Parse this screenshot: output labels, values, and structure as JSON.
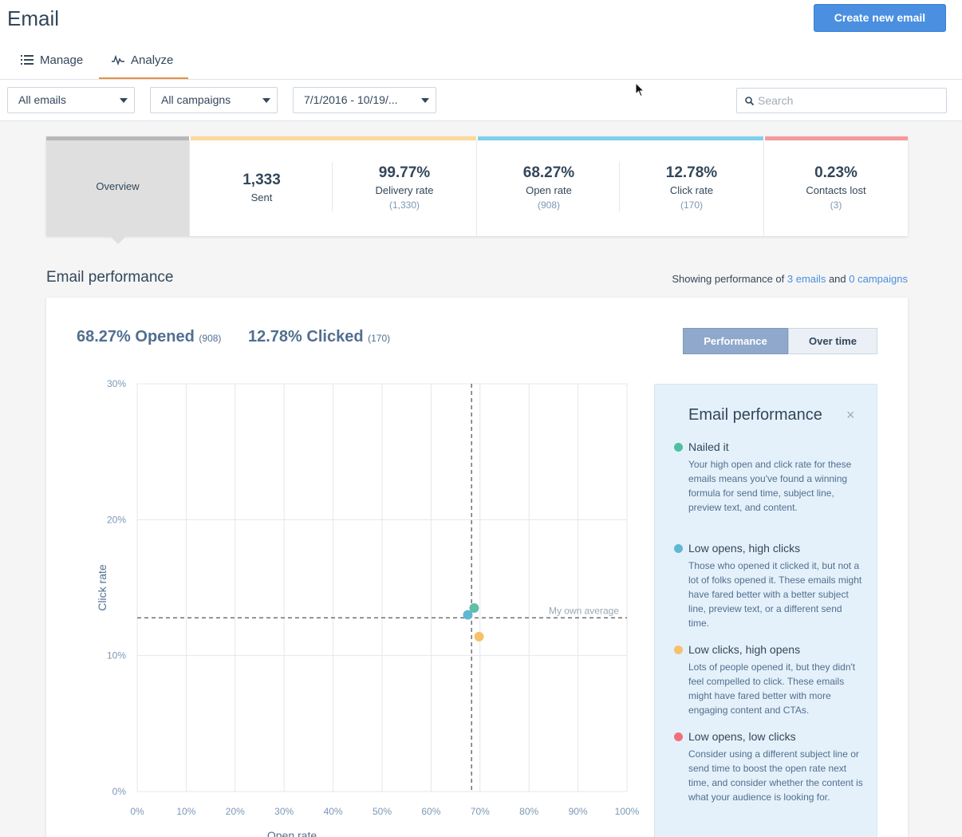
{
  "header": {
    "title": "Email",
    "create_button": "Create new email",
    "tabs": [
      {
        "label": "Manage",
        "icon": "list-icon"
      },
      {
        "label": "Analyze",
        "icon": "pulse-icon",
        "active": true
      }
    ]
  },
  "filters": {
    "email_filter": "All emails",
    "campaign_filter": "All campaigns",
    "date_range": "7/1/2016 - 10/19/...",
    "search_placeholder": "Search"
  },
  "stats": {
    "overview_label": "Overview",
    "sent": {
      "value": "1,333",
      "label": "Sent"
    },
    "delivery": {
      "value": "99.77%",
      "label": "Delivery rate",
      "sub": "(1,330)"
    },
    "open": {
      "value": "68.27%",
      "label": "Open rate",
      "sub": "(908)"
    },
    "click": {
      "value": "12.78%",
      "label": "Click rate",
      "sub": "(170)"
    },
    "contacts_lost": {
      "value": "0.23%",
      "label": "Contacts lost",
      "sub": "(3)"
    },
    "colors": {
      "overview": "#b8b8b8",
      "delivery": "#fbd89b",
      "engagement": "#7fd0ee",
      "lost": "#f59a9a"
    }
  },
  "performance": {
    "section_title": "Email performance",
    "showing_prefix": "Showing performance of",
    "emails_link": "3 emails",
    "and": "and",
    "campaigns_link": "0 campaigns",
    "opened_value": "68.27% Opened",
    "opened_count": "(908)",
    "clicked_value": "12.78% Clicked",
    "clicked_count": "(170)",
    "toggle_performance": "Performance",
    "toggle_over_time": "Over time"
  },
  "chart_data": {
    "type": "scatter",
    "xlabel": "Open rate",
    "ylabel": "Click rate",
    "xlim": [
      0,
      100
    ],
    "ylim": [
      0,
      30
    ],
    "x_ticks": [
      "0%",
      "10%",
      "20%",
      "30%",
      "40%",
      "50%",
      "60%",
      "70%",
      "80%",
      "90%",
      "100%"
    ],
    "y_ticks": [
      "0%",
      "10%",
      "20%",
      "30%"
    ],
    "grid": true,
    "average_label": "My own average",
    "average": {
      "x": 68.27,
      "y": 12.78
    },
    "points": [
      {
        "x": 67.5,
        "y": 13.0,
        "category": "Low opens, high clicks",
        "color": "#5fb7d4"
      },
      {
        "x": 68.8,
        "y": 13.5,
        "category": "Nailed it",
        "color": "#5fbfa7"
      },
      {
        "x": 69.8,
        "y": 11.4,
        "category": "Low clicks, high opens",
        "color": "#f5c26b"
      }
    ]
  },
  "legend": {
    "title": "Email performance",
    "close": "×",
    "items": [
      {
        "name": "Nailed it",
        "color": "#4fbf9f",
        "desc": "Your high open and click rate for these emails means you've found a winning formula for send time, subject line, preview text, and content."
      },
      {
        "name": "Low opens, high clicks",
        "color": "#5fb7d4",
        "desc": "Those who opened it clicked it, but not a lot of folks opened it. These emails might have fared better with a better subject line, preview text, or a different send time."
      },
      {
        "name": "Low clicks, high opens",
        "color": "#f5c26b",
        "desc": "Lots of people opened it, but they didn't feel compelled to click. These emails might have fared better with more engaging content and CTAs."
      },
      {
        "name": "Low opens, low clicks",
        "color": "#f2707a",
        "desc": "Consider using a different subject line or send time to boost the open rate next time, and consider whether the content is what your audience is looking for."
      }
    ]
  }
}
